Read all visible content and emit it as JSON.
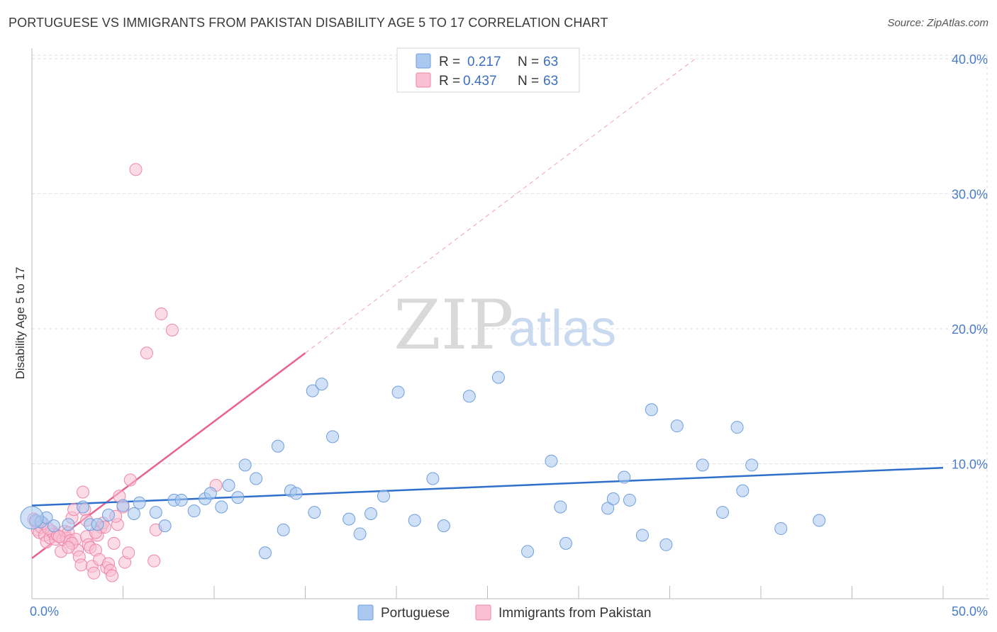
{
  "header": {
    "title": "PORTUGUESE VS IMMIGRANTS FROM PAKISTAN DISABILITY AGE 5 TO 17 CORRELATION CHART",
    "source": "Source: ZipAtlas.com"
  },
  "watermark": {
    "zip": "ZIP",
    "atlas": "atlas"
  },
  "legend": {
    "r_label": "R =",
    "n_label": "N =",
    "series": [
      {
        "r": "0.217",
        "n": "63"
      },
      {
        "r": "0.437",
        "n": "63"
      }
    ]
  },
  "chart_data": {
    "type": "scatter",
    "title": "PORTUGUESE VS IMMIGRANTS FROM PAKISTAN DISABILITY AGE 5 TO 17 CORRELATION CHART",
    "xlabel": "",
    "ylabel": "Disability Age 5 to 17",
    "xlim": [
      0,
      50
    ],
    "ylim": [
      0,
      41
    ],
    "x_tick_labels": [
      "0.0%",
      "50.0%"
    ],
    "y_ticks": [
      10,
      20,
      30,
      40
    ],
    "y_tick_labels": [
      "10.0%",
      "20.0%",
      "30.0%",
      "40.0%"
    ],
    "grid": true,
    "legend_position": "top-center",
    "colors": {
      "portuguese_fill": "#aac8f0",
      "portuguese_stroke": "#6f9fdc",
      "portuguese_line": "#2d6fca",
      "pakistan_fill": "#f8c0d2",
      "pakistan_stroke": "#ef86a8",
      "pakistan_line": "#e8628c"
    },
    "series": [
      {
        "name": "Portuguese",
        "trend": {
          "x0": 0,
          "y0": 6.9,
          "x1": 50,
          "y1": 9.7
        },
        "points": [
          [
            0.2,
            5.8
          ],
          [
            0.5,
            5.7
          ],
          [
            0.8,
            6.0
          ],
          [
            1.2,
            5.4
          ],
          [
            2.0,
            5.5
          ],
          [
            2.8,
            6.8
          ],
          [
            3.2,
            5.5
          ],
          [
            3.6,
            5.5
          ],
          [
            4.2,
            6.2
          ],
          [
            5.0,
            6.9
          ],
          [
            5.6,
            6.3
          ],
          [
            5.9,
            7.1
          ],
          [
            6.8,
            6.4
          ],
          [
            7.3,
            5.4
          ],
          [
            7.8,
            7.3
          ],
          [
            8.2,
            7.3
          ],
          [
            8.9,
            6.5
          ],
          [
            9.5,
            7.4
          ],
          [
            9.8,
            7.8
          ],
          [
            10.4,
            6.8
          ],
          [
            10.8,
            8.4
          ],
          [
            11.3,
            7.5
          ],
          [
            11.7,
            9.9
          ],
          [
            12.3,
            8.9
          ],
          [
            12.8,
            3.4
          ],
          [
            13.5,
            11.3
          ],
          [
            13.8,
            5.1
          ],
          [
            14.2,
            8.0
          ],
          [
            14.5,
            7.8
          ],
          [
            15.5,
            6.4
          ],
          [
            15.4,
            15.4
          ],
          [
            15.9,
            15.9
          ],
          [
            16.5,
            12.0
          ],
          [
            17.4,
            5.9
          ],
          [
            18.0,
            4.8
          ],
          [
            18.6,
            6.3
          ],
          [
            19.3,
            7.6
          ],
          [
            20.1,
            15.3
          ],
          [
            21.0,
            5.8
          ],
          [
            22.0,
            8.9
          ],
          [
            22.6,
            5.4
          ],
          [
            24.0,
            15.0
          ],
          [
            25.6,
            16.4
          ],
          [
            27.2,
            3.5
          ],
          [
            28.5,
            10.2
          ],
          [
            29.0,
            6.8
          ],
          [
            29.3,
            4.1
          ],
          [
            31.6,
            6.7
          ],
          [
            31.9,
            7.4
          ],
          [
            32.5,
            9.0
          ],
          [
            32.8,
            7.3
          ],
          [
            33.5,
            4.7
          ],
          [
            34.0,
            14.0
          ],
          [
            34.8,
            4.0
          ],
          [
            35.4,
            12.8
          ],
          [
            36.8,
            9.9
          ],
          [
            37.9,
            6.4
          ],
          [
            38.7,
            12.7
          ],
          [
            39.0,
            8.0
          ],
          [
            39.5,
            9.9
          ],
          [
            41.1,
            5.2
          ],
          [
            43.2,
            5.8
          ],
          [
            0.0,
            6.0
          ]
        ]
      },
      {
        "name": "Immigrants from Pakistan",
        "trend": {
          "x0": 0,
          "y0": 3.0,
          "x1": 15,
          "y1": 18.2
        },
        "trend_ext": {
          "x0": 15,
          "y0": 18.2,
          "x1": 36.4,
          "y1": 40.0
        },
        "points": [
          [
            0.1,
            5.9
          ],
          [
            0.2,
            5.7
          ],
          [
            0.3,
            5.1
          ],
          [
            0.4,
            4.9
          ],
          [
            0.5,
            5.3
          ],
          [
            0.7,
            4.7
          ],
          [
            0.8,
            4.2
          ],
          [
            1.0,
            4.5
          ],
          [
            1.1,
            5.0
          ],
          [
            1.2,
            4.8
          ],
          [
            1.3,
            4.4
          ],
          [
            1.4,
            4.7
          ],
          [
            1.6,
            3.5
          ],
          [
            1.7,
            4.4
          ],
          [
            1.8,
            5.0
          ],
          [
            1.9,
            4.5
          ],
          [
            2.0,
            4.9
          ],
          [
            2.1,
            4.3
          ],
          [
            2.2,
            6.0
          ],
          [
            2.3,
            6.6
          ],
          [
            2.4,
            4.4
          ],
          [
            2.5,
            3.6
          ],
          [
            2.6,
            3.1
          ],
          [
            2.7,
            2.5
          ],
          [
            2.8,
            7.9
          ],
          [
            2.9,
            6.6
          ],
          [
            3.0,
            4.6
          ],
          [
            3.1,
            4.0
          ],
          [
            3.2,
            3.8
          ],
          [
            3.3,
            2.4
          ],
          [
            3.4,
            1.9
          ],
          [
            3.5,
            3.6
          ],
          [
            3.6,
            4.7
          ],
          [
            3.7,
            2.9
          ],
          [
            3.8,
            5.3
          ],
          [
            3.9,
            5.6
          ],
          [
            4.0,
            5.3
          ],
          [
            4.1,
            2.3
          ],
          [
            4.2,
            2.6
          ],
          [
            4.3,
            2.1
          ],
          [
            4.4,
            1.7
          ],
          [
            4.5,
            4.1
          ],
          [
            4.7,
            5.5
          ],
          [
            4.8,
            7.6
          ],
          [
            5.0,
            6.8
          ],
          [
            5.1,
            2.7
          ],
          [
            5.3,
            3.4
          ],
          [
            5.4,
            8.8
          ],
          [
            5.7,
            31.8
          ],
          [
            6.3,
            18.2
          ],
          [
            6.7,
            2.8
          ],
          [
            6.8,
            5.1
          ],
          [
            7.1,
            21.1
          ],
          [
            7.7,
            19.9
          ],
          [
            10.1,
            8.4
          ],
          [
            0.6,
            5.6
          ],
          [
            1.5,
            4.6
          ],
          [
            2.2,
            4.1
          ],
          [
            3.0,
            5.8
          ],
          [
            3.5,
            4.9
          ],
          [
            4.6,
            6.1
          ],
          [
            0.9,
            5.2
          ],
          [
            2.0,
            3.8
          ]
        ]
      }
    ],
    "bottom_legend": [
      "Portuguese",
      "Immigrants from Pakistan"
    ]
  }
}
